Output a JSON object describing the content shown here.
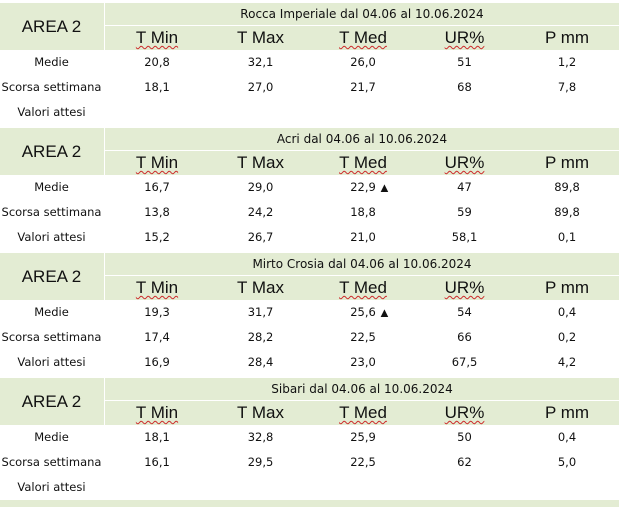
{
  "column_headers": [
    "T Min",
    "T Max",
    "T Med",
    "UR%",
    "P mm"
  ],
  "row_labels": [
    "Medie",
    "Scorsa settimana",
    "Valori attesi"
  ],
  "blocks": [
    {
      "area": "AREA 2",
      "title": "Rocca Imperiale  dal 04.06 al 10.06.2024",
      "rows": [
        [
          "20,8",
          "32,1",
          "26,0",
          "51",
          "1,2"
        ],
        [
          "18,1",
          "27,0",
          "21,7",
          "68",
          "7,8"
        ],
        [
          "",
          "",
          "",
          "",
          ""
        ]
      ],
      "trend": [
        "",
        "",
        ""
      ]
    },
    {
      "area": "AREA 2",
      "title": "Acri dal 04.06 al 10.06.2024",
      "rows": [
        [
          "16,7",
          "29,0",
          "22,9",
          "47",
          "89,8"
        ],
        [
          "13,8",
          "24,2",
          "18,8",
          "59",
          "89,8"
        ],
        [
          "15,2",
          "26,7",
          "21,0",
          "58,1",
          "0,1"
        ]
      ],
      "trend": [
        "▲",
        "",
        ""
      ]
    },
    {
      "area": "AREA 2",
      "title": "Mirto Crosia dal 04.06 al 10.06.2024",
      "rows": [
        [
          "19,3",
          "31,7",
          "25,6",
          "54",
          "0,4"
        ],
        [
          "17,4",
          "28,2",
          "22,5",
          "66",
          "0,2"
        ],
        [
          "16,9",
          "28,4",
          "23,0",
          "67,5",
          "4,2"
        ]
      ],
      "trend": [
        "▲",
        "",
        ""
      ]
    },
    {
      "area": "AREA 2",
      "title": "Sibari dal 04.06 al 10.06.2024",
      "rows": [
        [
          "18,1",
          "32,8",
          "25,9",
          "50",
          "0,4"
        ],
        [
          "16,1",
          "29,5",
          "22,5",
          "62",
          "5,0"
        ],
        [
          "",
          "",
          "",
          "",
          ""
        ]
      ],
      "trend": [
        "",
        "",
        ""
      ]
    }
  ]
}
